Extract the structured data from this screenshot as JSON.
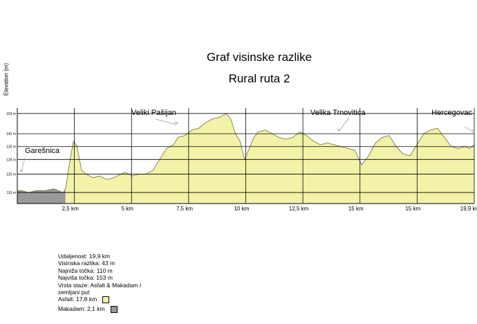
{
  "chart_data": {
    "type": "area",
    "title": "Graf visinske razlike",
    "subtitle": "Rural ruta 2",
    "ylabel": "Elevation (m)",
    "ylim": [
      104,
      156
    ],
    "y_ticks": [
      110,
      120,
      128,
      135,
      142,
      153
    ],
    "y_tick_labels": [
      "110 m",
      "120 m",
      "128 m",
      "135 m",
      "142 m",
      "153 m"
    ],
    "x_tick_labels": [
      "2,5 km",
      "5 km",
      "7,5 km",
      "10 km",
      "12,5 km",
      "15 km",
      "15 km",
      "19,9 km"
    ],
    "surfaces": [
      {
        "name": "Makadam",
        "color": "#999999",
        "from_km": 0,
        "to_km": 2.1
      },
      {
        "name": "Asfalt",
        "color": "#f2f2a8",
        "from_km": 2.1,
        "to_km": 19.9
      }
    ],
    "x": [
      0,
      0.2,
      0.5,
      0.8,
      1.2,
      1.6,
      2.0,
      2.1,
      2.3,
      2.45,
      2.6,
      2.8,
      3.0,
      3.3,
      3.6,
      3.9,
      4.2,
      4.5,
      4.7,
      5.0,
      5.3,
      5.6,
      5.9,
      6.2,
      6.5,
      6.8,
      7.0,
      7.3,
      7.6,
      7.9,
      8.2,
      8.5,
      8.8,
      9.1,
      9.3,
      9.5,
      9.7,
      9.9,
      10.1,
      10.3,
      10.5,
      10.8,
      11.1,
      11.4,
      11.7,
      12.0,
      12.3,
      12.6,
      12.9,
      13.2,
      13.5,
      13.8,
      14.1,
      14.4,
      14.7,
      15.0,
      15.3,
      15.6,
      15.9,
      16.2,
      16.5,
      16.8,
      17.1,
      17.4,
      17.7,
      18.0,
      18.3,
      18.6,
      18.9,
      19.2,
      19.5,
      19.7,
      19.9
    ],
    "y": [
      111,
      111,
      110,
      111,
      111,
      112,
      110,
      112,
      128,
      138,
      135,
      122,
      120,
      118,
      119,
      117,
      118,
      120,
      121,
      119,
      120,
      120,
      122,
      128,
      134,
      136,
      140,
      141,
      144,
      145,
      148,
      150,
      151,
      153,
      150,
      142,
      138,
      128,
      134,
      140,
      143,
      144,
      142,
      140,
      139,
      140,
      143,
      141,
      138,
      136,
      137,
      136,
      135,
      134,
      133,
      125,
      130,
      137,
      140,
      141,
      135,
      131,
      130,
      136,
      142,
      144,
      145,
      140,
      135,
      134,
      135,
      134,
      136
    ],
    "annotations": [
      {
        "text": "Garešnica",
        "km": 0
      },
      {
        "text": "Veliki Pašijan",
        "km": 6.3
      },
      {
        "text": "Velika Trnovitica",
        "km": 13.2
      },
      {
        "text": "Hercegovac",
        "km": 19.9
      }
    ],
    "grid": true
  },
  "stats": [
    "Udaljenost: 19,9 km",
    "Visinska razlika: 43 m",
    "Najniža točka: 110 m",
    "Najviša točka: 153 m",
    "Vrsta staze: Asfalt & Makadam /",
    "zemljani put"
  ],
  "legend": [
    {
      "label": "Asfalt: 17,8 km",
      "color": "#f2f2a8"
    },
    {
      "label": "Makadam: 2,1 km",
      "color": "#999999"
    }
  ]
}
